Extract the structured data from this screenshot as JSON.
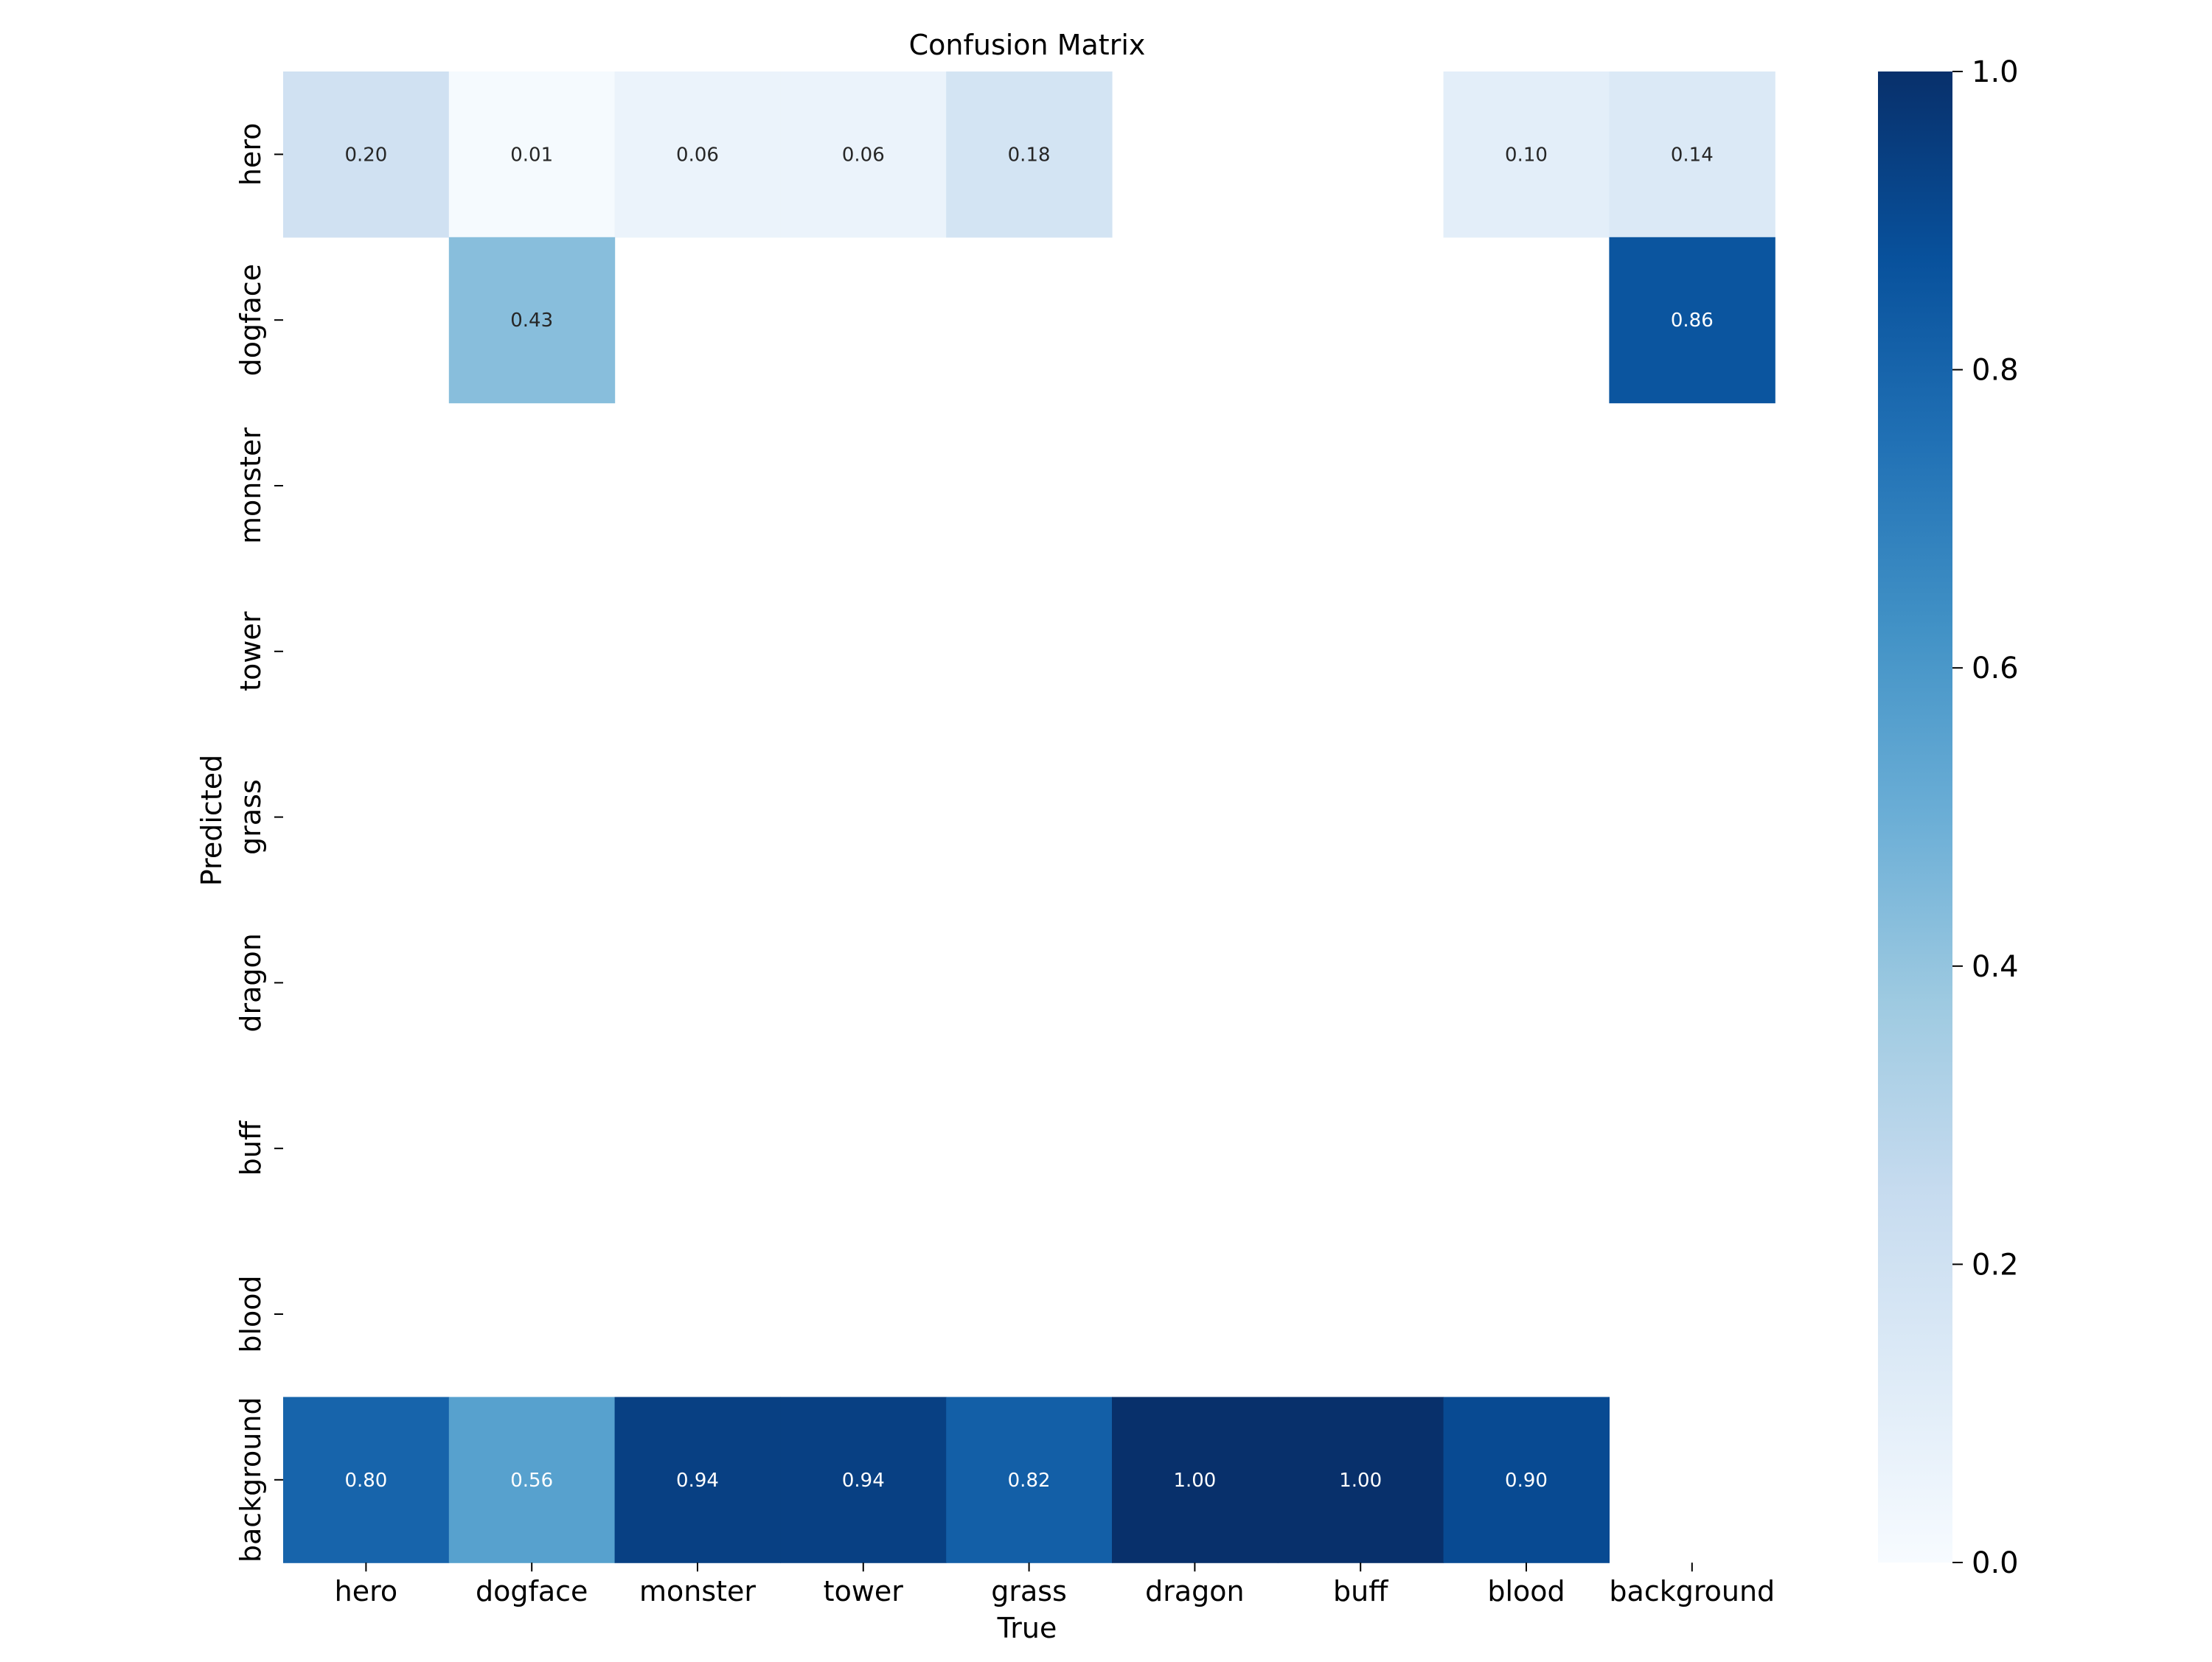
{
  "chart_data": {
    "type": "heatmap",
    "title": "Confusion Matrix",
    "xlabel": "True",
    "ylabel": "Predicted",
    "x_categories": [
      "hero",
      "dogface",
      "monster",
      "tower",
      "grass",
      "dragon",
      "buff",
      "blood",
      "background"
    ],
    "y_categories": [
      "hero",
      "dogface",
      "monster",
      "tower",
      "grass",
      "dragon",
      "buff",
      "blood",
      "background"
    ],
    "values": [
      [
        0.2,
        0.01,
        0.06,
        0.06,
        0.18,
        null,
        null,
        0.1,
        0.14
      ],
      [
        null,
        0.43,
        null,
        null,
        null,
        null,
        null,
        null,
        0.86
      ],
      [
        null,
        null,
        null,
        null,
        null,
        null,
        null,
        null,
        null
      ],
      [
        null,
        null,
        null,
        null,
        null,
        null,
        null,
        null,
        null
      ],
      [
        null,
        null,
        null,
        null,
        null,
        null,
        null,
        null,
        null
      ],
      [
        null,
        null,
        null,
        null,
        null,
        null,
        null,
        null,
        null
      ],
      [
        null,
        null,
        null,
        null,
        null,
        null,
        null,
        null,
        null
      ],
      [
        null,
        null,
        null,
        null,
        null,
        null,
        null,
        null,
        null
      ],
      [
        0.8,
        0.56,
        0.94,
        0.94,
        0.82,
        1.0,
        1.0,
        0.9,
        null
      ]
    ],
    "value_format": "0.00",
    "vmin": 0.0,
    "vmax": 1.0,
    "colormap": "Blues",
    "colormap_stops": [
      "#f7fbff",
      "#deebf7",
      "#c6dbef",
      "#9ecae1",
      "#6baed6",
      "#4292c6",
      "#2171b5",
      "#08519c",
      "#08306b"
    ],
    "colorbar_ticks": [
      "0.0",
      "0.2",
      "0.4",
      "0.6",
      "0.8",
      "1.0"
    ],
    "colorbar_tick_values": [
      0.0,
      0.2,
      0.4,
      0.6,
      0.8,
      1.0
    ]
  }
}
